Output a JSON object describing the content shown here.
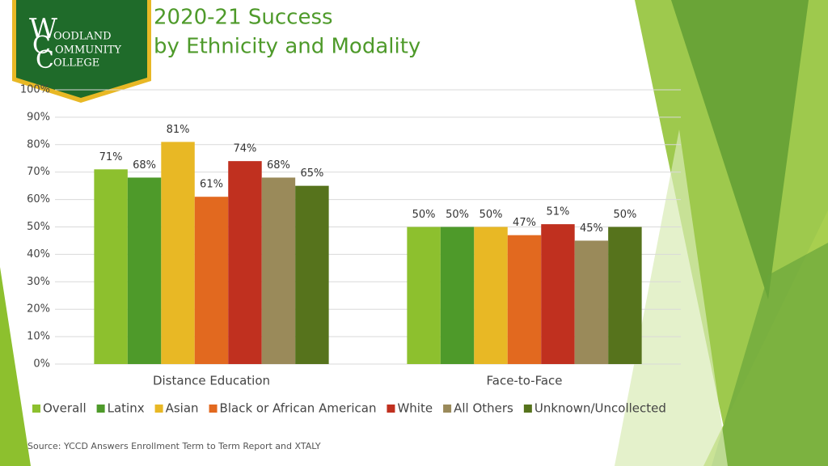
{
  "logo": {
    "monogram": [
      "W",
      "C",
      "C"
    ],
    "lines": [
      "OODLAND",
      "OMMUNITY",
      "OLLEGE"
    ]
  },
  "chart_data": {
    "type": "bar",
    "title": "2020-21 Success",
    "subtitle": "by Ethnicity and Modality",
    "categories": [
      "Distance Education",
      "Face-to-Face"
    ],
    "series": [
      {
        "name": "Overall",
        "color": "#8dc02e",
        "values": [
          71,
          50
        ],
        "value_labels": [
          "71%",
          "50%"
        ]
      },
      {
        "name": "Latinx",
        "color": "#4e9a2a",
        "values": [
          68,
          50
        ],
        "value_labels": [
          "68%",
          "50%"
        ]
      },
      {
        "name": "Asian",
        "color": "#e8b825",
        "values": [
          81,
          50
        ],
        "value_labels": [
          "81%",
          "50%"
        ]
      },
      {
        "name": "Black or African American",
        "color": "#e2691f",
        "values": [
          61,
          47
        ],
        "value_labels": [
          "61%",
          "47%"
        ]
      },
      {
        "name": "White",
        "color": "#c0301f",
        "values": [
          74,
          51
        ],
        "value_labels": [
          "74%",
          "51%"
        ]
      },
      {
        "name": "All Others",
        "color": "#9a8a5a",
        "values": [
          68,
          45
        ],
        "value_labels": [
          "68%",
          "45%"
        ]
      },
      {
        "name": "Unknown/Uncollected",
        "color": "#56731c",
        "values": [
          65,
          50
        ],
        "value_labels": [
          "65%",
          "50%"
        ]
      }
    ],
    "ylim": [
      0,
      100
    ],
    "yticks": [
      {
        "value": 0,
        "label": "0%"
      },
      {
        "value": 10,
        "label": "10%"
      },
      {
        "value": 20,
        "label": "20%"
      },
      {
        "value": 30,
        "label": "30%"
      },
      {
        "value": 40,
        "label": "40%"
      },
      {
        "value": 50,
        "label": "50%"
      },
      {
        "value": 60,
        "label": "60%"
      },
      {
        "value": 70,
        "label": "70%"
      },
      {
        "value": 80,
        "label": "80%"
      },
      {
        "value": 90,
        "label": "90%"
      },
      {
        "value": 100,
        "label": "100%"
      }
    ],
    "grid": true,
    "legend": "bottom",
    "source": "Source: YCCD Answers Enrollment Term to Term Report and XTALY"
  }
}
